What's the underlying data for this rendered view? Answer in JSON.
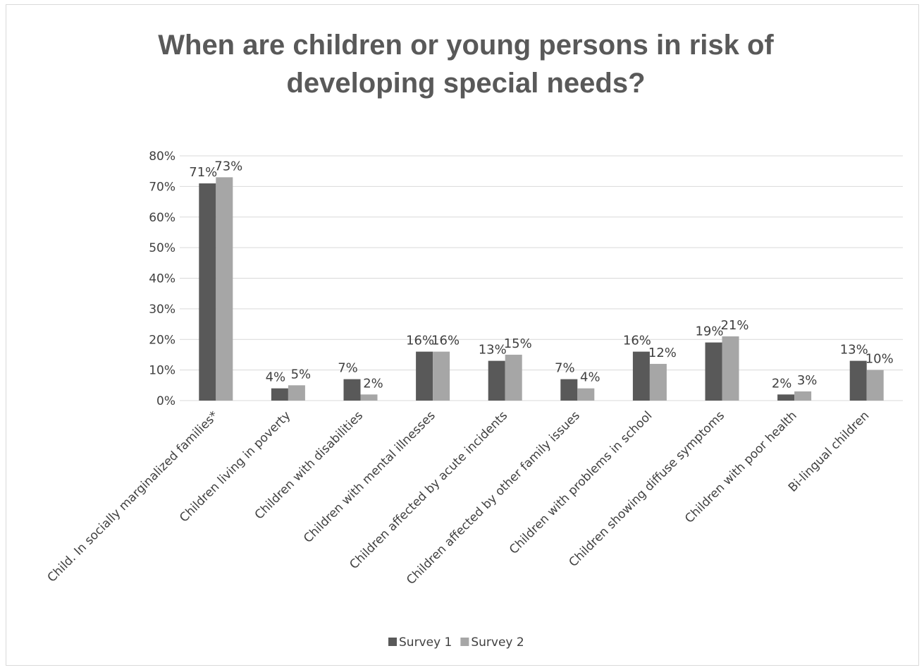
{
  "chart_data": {
    "type": "bar",
    "title": "When are children or young persons in risk of developing special needs?",
    "title_lines": [
      "When are children or young persons in risk of",
      "developing special needs?"
    ],
    "categories": [
      "Child. In socially marginalized families*",
      "Children living in poverty",
      "Children with disabilities",
      "Children with mental illnesses",
      "Children affected by acute incidents",
      "Children affected by other family issues",
      "Children with problems in school",
      "Children showing diffuse symptoms",
      "Children with poor health",
      "Bi-lingual children"
    ],
    "series": [
      {
        "name": "Survey 1",
        "values": [
          71,
          4,
          7,
          16,
          13,
          7,
          16,
          19,
          2,
          13
        ],
        "color": "#595959"
      },
      {
        "name": "Survey 2",
        "values": [
          73,
          5,
          2,
          16,
          15,
          4,
          12,
          21,
          3,
          10
        ],
        "color": "#a6a6a6"
      }
    ],
    "ylim": [
      0,
      80
    ],
    "yticks": [
      "0%",
      "10%",
      "20%",
      "30%",
      "40%",
      "50%",
      "60%",
      "70%",
      "80%"
    ],
    "value_suffix": "%",
    "grid": true,
    "legend_position": "bottom"
  }
}
